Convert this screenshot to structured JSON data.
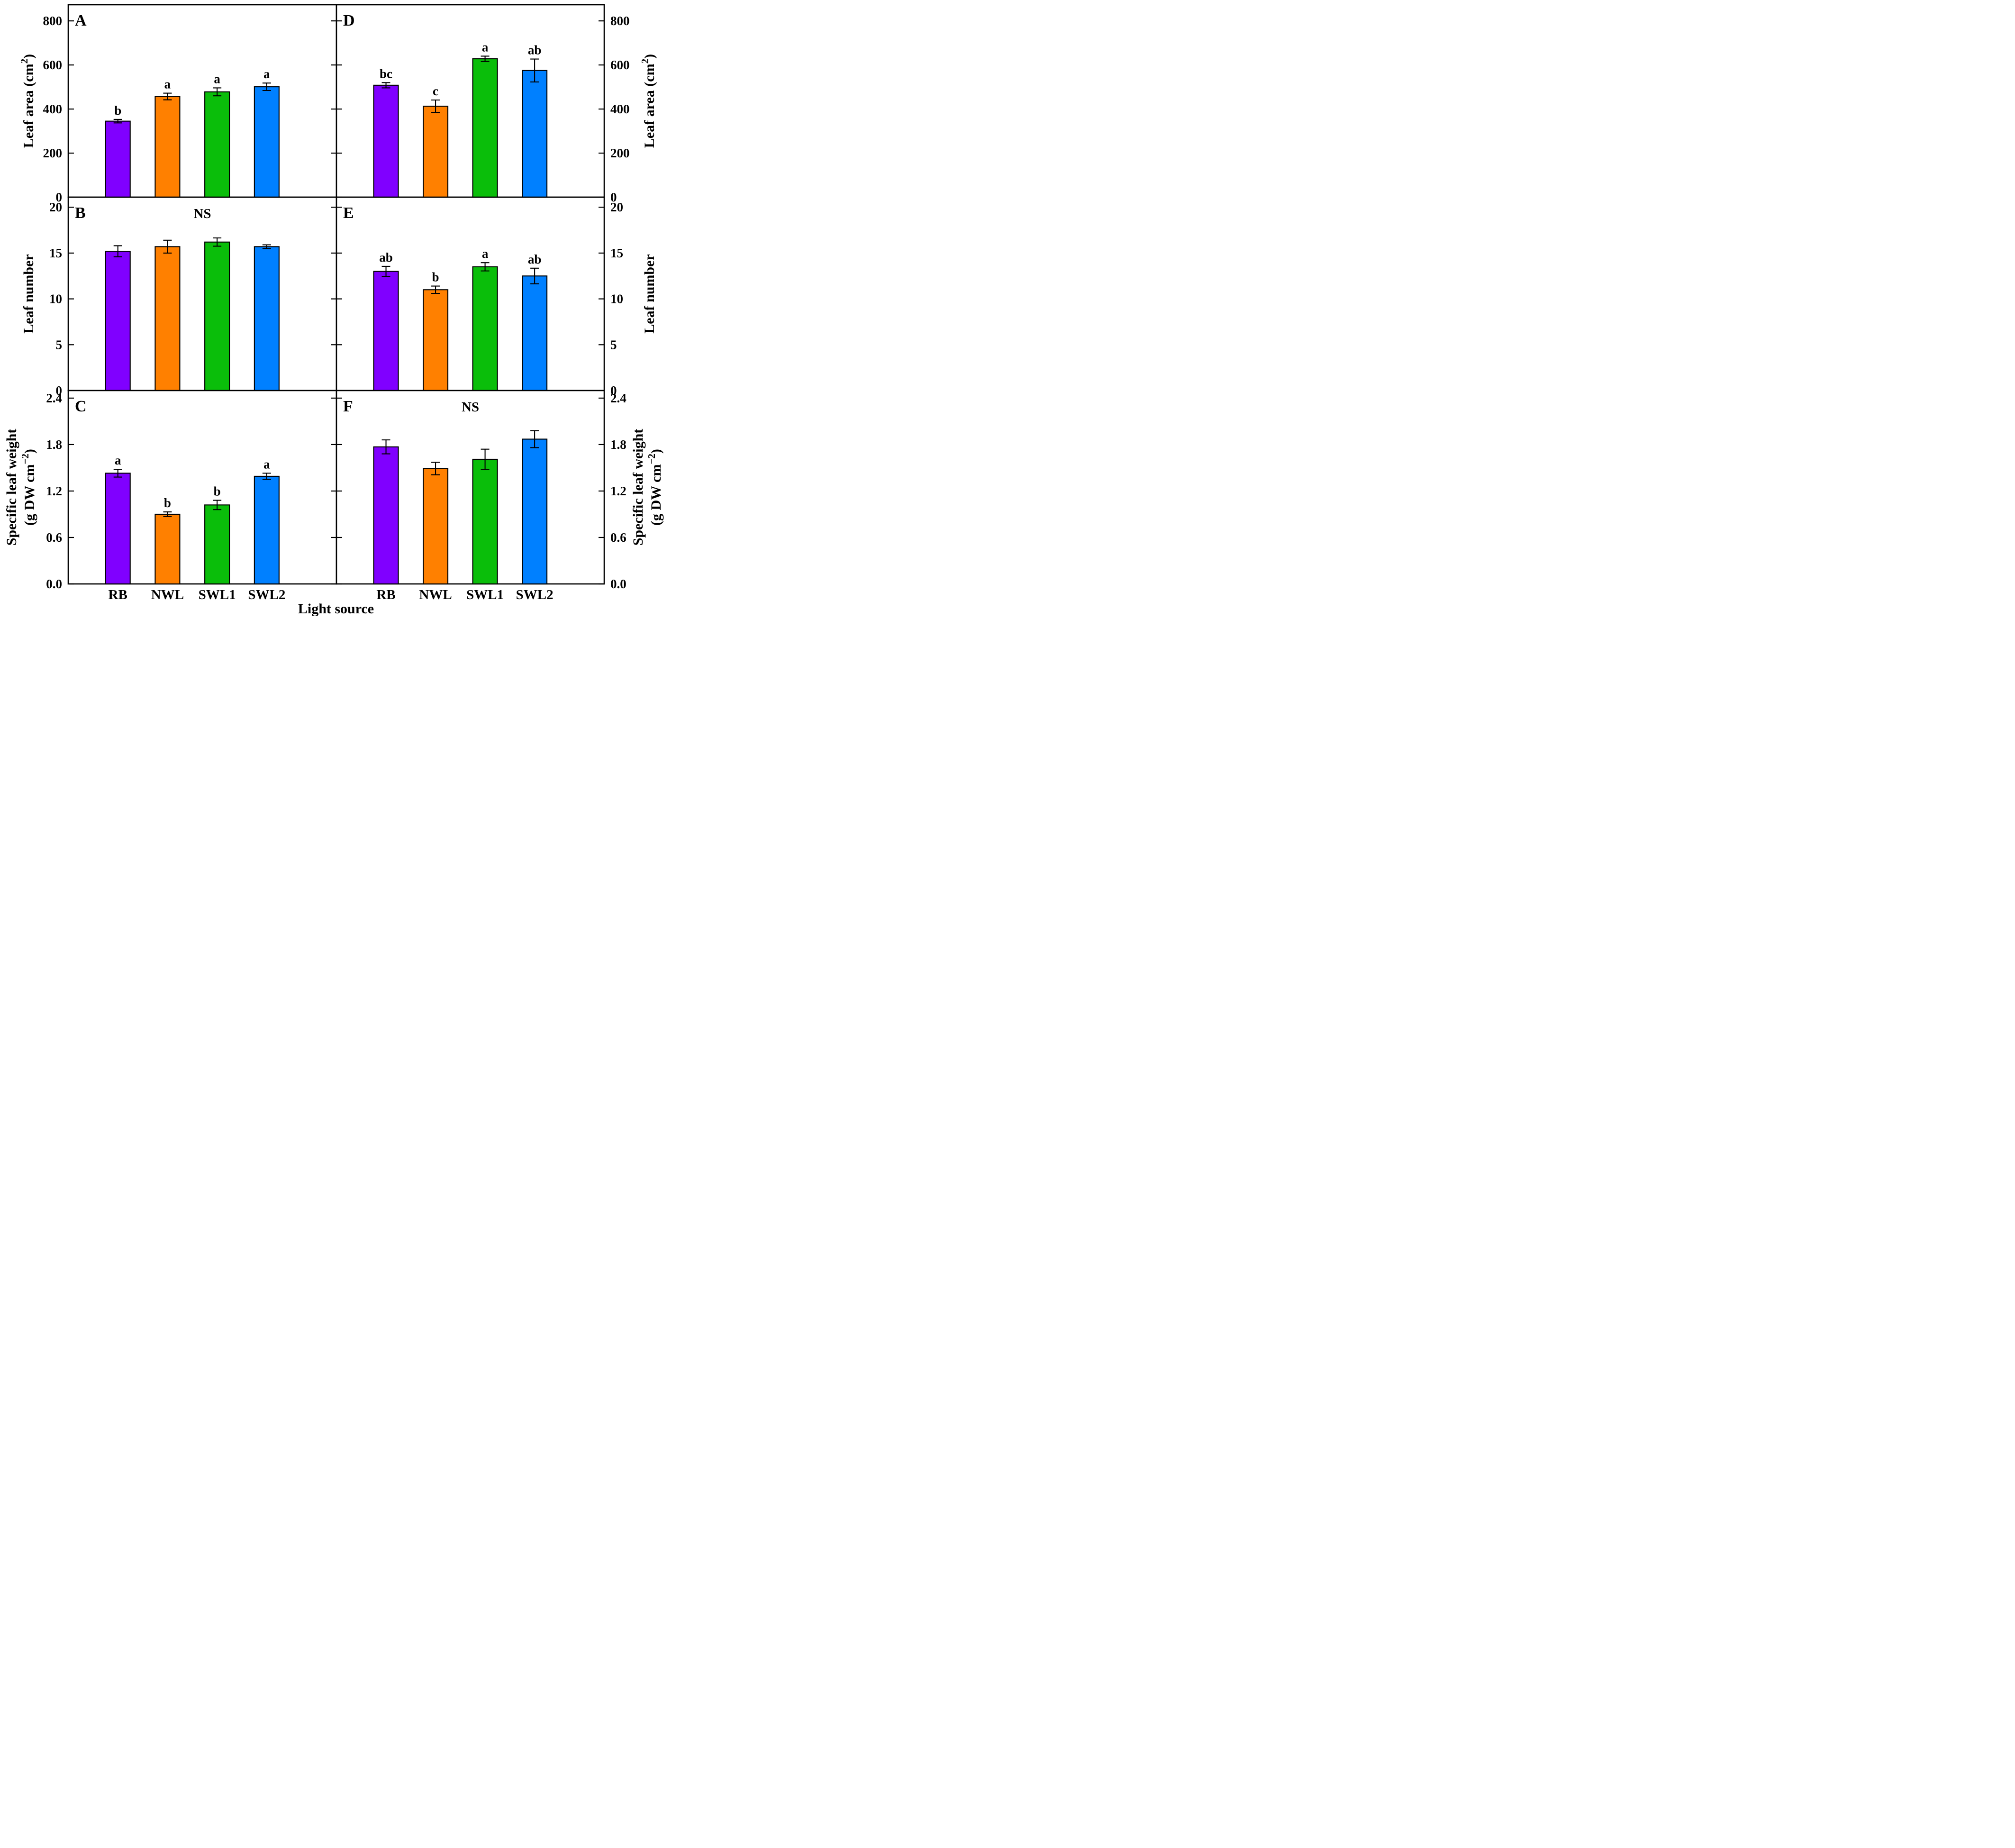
{
  "figure": {
    "x_axis_label": "Light source",
    "categories": [
      "RB",
      "NWL",
      "SWL1",
      "SWL2"
    ],
    "bar_colors": [
      "#8000FF",
      "#FF8000",
      "#0ABE0A",
      "#0080FF"
    ],
    "bar_outline_color": "#000000",
    "background_color": "#FFFFFF",
    "ns_label": "NS"
  },
  "chart_data": [
    {
      "type": "bar",
      "panel": "A",
      "grid": {
        "row": 0,
        "col": 0
      },
      "ylabel_lines": [
        "Leaf area (cm^{2})"
      ],
      "ylim": [
        0,
        800
      ],
      "yticks": [
        0,
        200,
        400,
        600,
        800
      ],
      "ytick_labels": [
        "0",
        "200",
        "400",
        "600",
        "800"
      ],
      "headroom_frac": 0.084,
      "annotation": null,
      "categories": [
        "RB",
        "NWL",
        "SWL1",
        "SWL2"
      ],
      "values": [
        345,
        457,
        478,
        501
      ],
      "errors": [
        8,
        15,
        18,
        17
      ],
      "letters": [
        "b",
        "a",
        "a",
        "a"
      ]
    },
    {
      "type": "bar",
      "panel": "D",
      "grid": {
        "row": 0,
        "col": 1
      },
      "ylabel_lines": [
        "Leaf area (cm^{2})"
      ],
      "ylim": [
        0,
        800
      ],
      "yticks": [
        0,
        200,
        400,
        600,
        800
      ],
      "ytick_labels": [
        "0",
        "200",
        "400",
        "600",
        "800"
      ],
      "headroom_frac": 0.084,
      "annotation": null,
      "categories": [
        "RB",
        "NWL",
        "SWL1",
        "SWL2"
      ],
      "values": [
        508,
        413,
        628,
        575
      ],
      "errors": [
        12,
        28,
        12,
        52
      ],
      "letters": [
        "bc",
        "c",
        "a",
        "ab"
      ]
    },
    {
      "type": "bar",
      "panel": "B",
      "grid": {
        "row": 1,
        "col": 0
      },
      "ylabel_lines": [
        "Leaf number"
      ],
      "ylim": [
        0,
        20
      ],
      "yticks": [
        0,
        5,
        10,
        15,
        20
      ],
      "ytick_labels": [
        "0",
        "5",
        "10",
        "15",
        "20"
      ],
      "headroom_frac": 0.052,
      "annotation": "NS",
      "categories": [
        "RB",
        "NWL",
        "SWL1",
        "SWL2"
      ],
      "values": [
        15.2,
        15.7,
        16.2,
        15.7
      ],
      "errors": [
        0.6,
        0.7,
        0.45,
        0.2
      ],
      "letters": null
    },
    {
      "type": "bar",
      "panel": "E",
      "grid": {
        "row": 1,
        "col": 1
      },
      "ylabel_lines": [
        "Leaf number"
      ],
      "ylim": [
        0,
        20
      ],
      "yticks": [
        0,
        5,
        10,
        15,
        20
      ],
      "ytick_labels": [
        "0",
        "5",
        "10",
        "15",
        "20"
      ],
      "headroom_frac": 0.052,
      "annotation": null,
      "categories": [
        "RB",
        "NWL",
        "SWL1",
        "SWL2"
      ],
      "values": [
        13.0,
        11.0,
        13.5,
        12.5
      ],
      "errors": [
        0.55,
        0.4,
        0.45,
        0.85
      ],
      "letters": [
        "ab",
        "b",
        "a",
        "ab"
      ]
    },
    {
      "type": "bar",
      "panel": "C",
      "grid": {
        "row": 2,
        "col": 0
      },
      "ylabel_lines": [
        "Specific leaf weight",
        "(g DW cm^{−2})"
      ],
      "ylim": [
        0,
        2.4
      ],
      "yticks": [
        0.0,
        0.6,
        1.2,
        1.8,
        2.4
      ],
      "ytick_labels": [
        "0.0",
        "0.6",
        "1.2",
        "1.8",
        "2.4"
      ],
      "headroom_frac": 0.039,
      "annotation": null,
      "categories": [
        "RB",
        "NWL",
        "SWL1",
        "SWL2"
      ],
      "values": [
        1.43,
        0.9,
        1.02,
        1.39
      ],
      "errors": [
        0.05,
        0.03,
        0.06,
        0.04
      ],
      "letters": [
        "a",
        "b",
        "b",
        "a"
      ]
    },
    {
      "type": "bar",
      "panel": "F",
      "grid": {
        "row": 2,
        "col": 1
      },
      "ylabel_lines": [
        "Specific leaf weight",
        "(g DW cm^{−2})"
      ],
      "ylim": [
        0,
        2.4
      ],
      "yticks": [
        0.0,
        0.6,
        1.2,
        1.8,
        2.4
      ],
      "ytick_labels": [
        "0.0",
        "0.6",
        "1.2",
        "1.8",
        "2.4"
      ],
      "headroom_frac": 0.039,
      "annotation": "NS",
      "categories": [
        "RB",
        "NWL",
        "SWL1",
        "SWL2"
      ],
      "values": [
        1.77,
        1.49,
        1.61,
        1.87
      ],
      "errors": [
        0.09,
        0.08,
        0.13,
        0.11
      ],
      "letters": null
    }
  ]
}
